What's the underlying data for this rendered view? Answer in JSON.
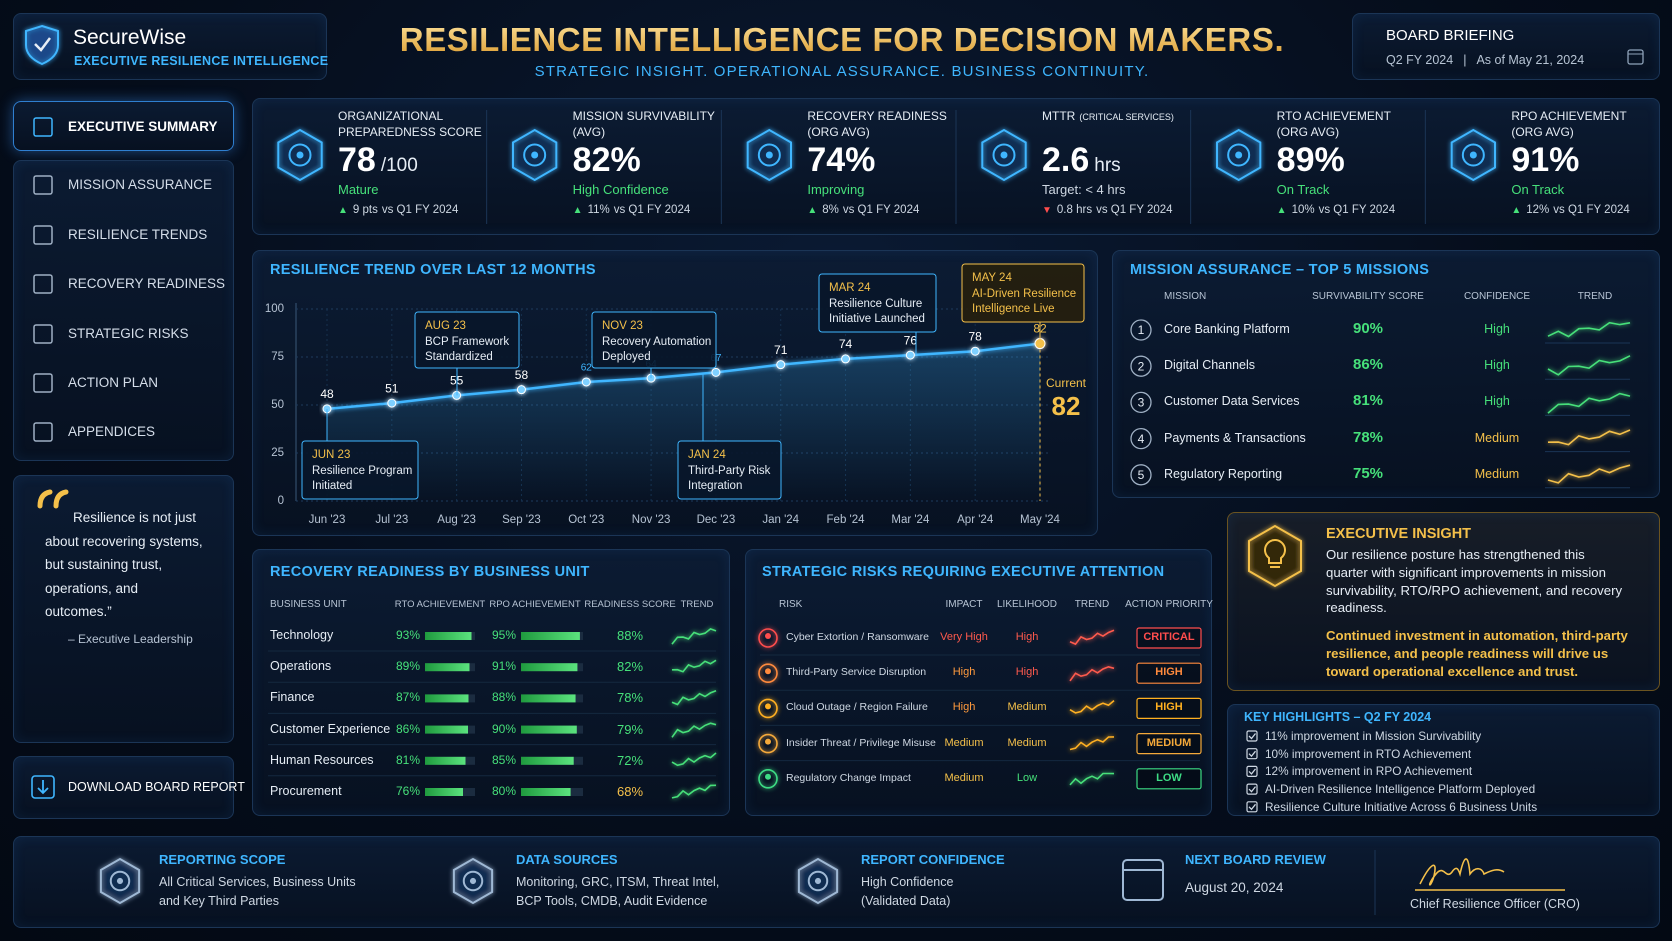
{
  "header": {
    "brand": "SecureWise",
    "tagline": "EXECUTIVE RESILIENCE INTELLIGENCE",
    "title": "RESILIENCE INTELLIGENCE FOR DECISION MAKERS.",
    "subtitle": "STRATEGIC INSIGHT. OPERATIONAL ASSURANCE. BUSINESS CONTINUITY.",
    "briefing": {
      "title": "BOARD BRIEFING",
      "period": "Q2 FY 2024",
      "separator": "|",
      "as_of": "As of May 21, 2024"
    }
  },
  "nav": [
    "EXECUTIVE SUMMARY",
    "MISSION ASSURANCE",
    "RESILIENCE TRENDS",
    "RECOVERY READINESS",
    "STRATEGIC RISKS",
    "ACTION PLAN",
    "APPENDICES"
  ],
  "quote": {
    "text": "Resilience is not just about recovering systems, but sustaining trust, operations, and outcomes.”",
    "author": "– Executive Leadership"
  },
  "download": "DOWNLOAD BOARD REPORT",
  "kpis": [
    {
      "label": [
        "ORGANIZATIONAL",
        "PREPAREDNESS SCORE"
      ],
      "value": "78",
      "unit": "/100",
      "status": "Mature",
      "direction": "up",
      "delta": "9 pts",
      "compare": "vs Q1 FY 2024"
    },
    {
      "label": [
        "MISSION SURVIVABILITY",
        "(AVG)"
      ],
      "value": "82%",
      "status": "High Confidence",
      "direction": "up",
      "delta": "11%",
      "compare": "vs Q1 FY 2024"
    },
    {
      "label": [
        "RECOVERY READINESS",
        "(ORG AVG)"
      ],
      "value": "74%",
      "status": "Improving",
      "direction": "up",
      "delta": "8%",
      "compare": "vs Q1 FY 2024"
    },
    {
      "label": [
        "MTTR"
      ],
      "label_note": "(CRITICAL SERVICES)",
      "value": "2.6",
      "unit": "hrs",
      "status": "Target: < 4 hrs",
      "direction": "down",
      "delta": "0.8 hrs",
      "compare": "vs Q1 FY 2024"
    },
    {
      "label": [
        "RTO ACHIEVEMENT",
        "(ORG AVG)"
      ],
      "value": "89%",
      "status": "On Track",
      "direction": "up",
      "delta": "10%",
      "compare": "vs Q1 FY 2024"
    },
    {
      "label": [
        "RPO ACHIEVEMENT",
        "(ORG AVG)"
      ],
      "value": "91%",
      "status": "On Track",
      "direction": "up",
      "delta": "12%",
      "compare": "vs Q1 FY 2024"
    }
  ],
  "chart_data": {
    "type": "line",
    "title": "RESILIENCE TREND OVER LAST 12 MONTHS",
    "categories": [
      "Jun '23",
      "Jul '23",
      "Aug '23",
      "Sep '23",
      "Oct '23",
      "Nov '23",
      "Dec '23",
      "Jan '24",
      "Feb '24",
      "Mar '24",
      "Apr '24",
      "May '24"
    ],
    "values": [
      48,
      51,
      55,
      58,
      62,
      64,
      67,
      71,
      74,
      76,
      78,
      82
    ],
    "color": "#3fb6ff",
    "ylim": [
      0,
      100
    ],
    "yticks": [
      0,
      25,
      50,
      75,
      100
    ],
    "grid": true,
    "current_label": "Current",
    "annotations": [
      {
        "date": "JUN 23",
        "text": [
          "Resilience Program",
          "Initiated"
        ]
      },
      {
        "date": "AUG 23",
        "text": [
          "BCP Framework",
          "Standardized"
        ]
      },
      {
        "date": "NOV 23",
        "text": [
          "Recovery Automation",
          "Deployed"
        ]
      },
      {
        "date": "JAN 24",
        "text": [
          "Third-Party Risk",
          "Integration"
        ]
      },
      {
        "date": "MAR 24",
        "text": [
          "Resilience Culture",
          "Initiative Launched"
        ]
      },
      {
        "date": "MAY 24",
        "text": [
          "AI-Driven Resilience",
          "Intelligence Live"
        ]
      }
    ]
  },
  "missions": {
    "title": "MISSION ASSURANCE – TOP 5 MISSIONS",
    "columns": [
      "MISSION",
      "SURVIVABILITY SCORE",
      "CONFIDENCE",
      "TREND"
    ],
    "rows": [
      {
        "rank": "1",
        "name": "Core Banking Platform",
        "score": "90%",
        "confidence": "High"
      },
      {
        "rank": "2",
        "name": "Digital Channels",
        "score": "86%",
        "confidence": "High"
      },
      {
        "rank": "3",
        "name": "Customer Data Services",
        "score": "81%",
        "confidence": "High"
      },
      {
        "rank": "4",
        "name": "Payments & Transactions",
        "score": "78%",
        "confidence": "Medium"
      },
      {
        "rank": "5",
        "name": "Regulatory Reporting",
        "score": "75%",
        "confidence": "Medium"
      }
    ]
  },
  "recovery": {
    "title": "RECOVERY READINESS BY BUSINESS UNIT",
    "columns": [
      "BUSINESS UNIT",
      "RTO ACHIEVEMENT",
      "RPO ACHIEVEMENT",
      "READINESS SCORE",
      "TREND"
    ],
    "rows": [
      {
        "name": "Technology",
        "rto": 93,
        "rto_label": "93%",
        "rpo": 95,
        "rpo_label": "95%",
        "readiness": "88%"
      },
      {
        "name": "Operations",
        "rto": 89,
        "rto_label": "89%",
        "rpo": 91,
        "rpo_label": "91%",
        "readiness": "82%"
      },
      {
        "name": "Finance",
        "rto": 87,
        "rto_label": "87%",
        "rpo": 88,
        "rpo_label": "88%",
        "readiness": "78%"
      },
      {
        "name": "Customer Experience",
        "rto": 86,
        "rto_label": "86%",
        "rpo": 90,
        "rpo_label": "90%",
        "readiness": "79%"
      },
      {
        "name": "Human Resources",
        "rto": 81,
        "rto_label": "81%",
        "rpo": 85,
        "rpo_label": "85%",
        "readiness": "72%"
      },
      {
        "name": "Procurement",
        "rto": 76,
        "rto_label": "76%",
        "rpo": 80,
        "rpo_label": "80%",
        "readiness": "68%"
      }
    ]
  },
  "risks": {
    "title": "STRATEGIC RISKS REQUIRING EXECUTIVE ATTENTION",
    "columns": [
      "RISK",
      "IMPACT",
      "LIKELIHOOD",
      "TREND",
      "ACTION PRIORITY"
    ],
    "rows": [
      {
        "name": "Cyber Extortion / Ransomware",
        "impact": "Very High",
        "likelihood": "High",
        "priority": "CRITICAL"
      },
      {
        "name": "Third-Party Service Disruption",
        "impact": "High",
        "likelihood": "High",
        "priority": "HIGH"
      },
      {
        "name": "Cloud Outage / Region Failure",
        "impact": "High",
        "likelihood": "Medium",
        "priority": "HIGH"
      },
      {
        "name": "Insider Threat / Privilege Misuse",
        "impact": "Medium",
        "likelihood": "Medium",
        "priority": "MEDIUM"
      },
      {
        "name": "Regulatory Change Impact",
        "impact": "Medium",
        "likelihood": "Low",
        "priority": "LOW"
      }
    ]
  },
  "insight": {
    "title": "EXECUTIVE INSIGHT",
    "body": "Our resilience posture has strengthened this quarter with significant improvements in mission survivability, RTO/RPO achievement, and recovery readiness.",
    "emphasis": "Continued investment in automation, third-party resilience, and people readiness will drive us toward operational excellence and trust."
  },
  "highlights": {
    "title": "KEY HIGHLIGHTS – Q2 FY 2024",
    "items": [
      "11% improvement in Mission Survivability",
      "10% improvement in RTO Achievement",
      "12% improvement in RPO Achievement",
      "AI-Driven Resilience Intelligence Platform Deployed",
      "Resilience Culture Initiative Across 6 Business Units"
    ]
  },
  "footer": {
    "items": [
      {
        "title": "REPORTING SCOPE",
        "lines": [
          "All Critical Services, Business Units",
          "and Key Third Parties"
        ]
      },
      {
        "title": "DATA SOURCES",
        "lines": [
          "Monitoring,  GRC, ITSM, Threat Intel,",
          "BCP Tools, CMDB, Audit Evidence"
        ]
      },
      {
        "title": "REPORT CONFIDENCE",
        "lines": [
          "High Confidence",
          "(Validated Data)"
        ]
      },
      {
        "title": "NEXT BOARD REVIEW",
        "lines": [
          "August 20, 2024"
        ]
      }
    ],
    "signature_caption": "Chief Resilience Officer (CRO)"
  }
}
